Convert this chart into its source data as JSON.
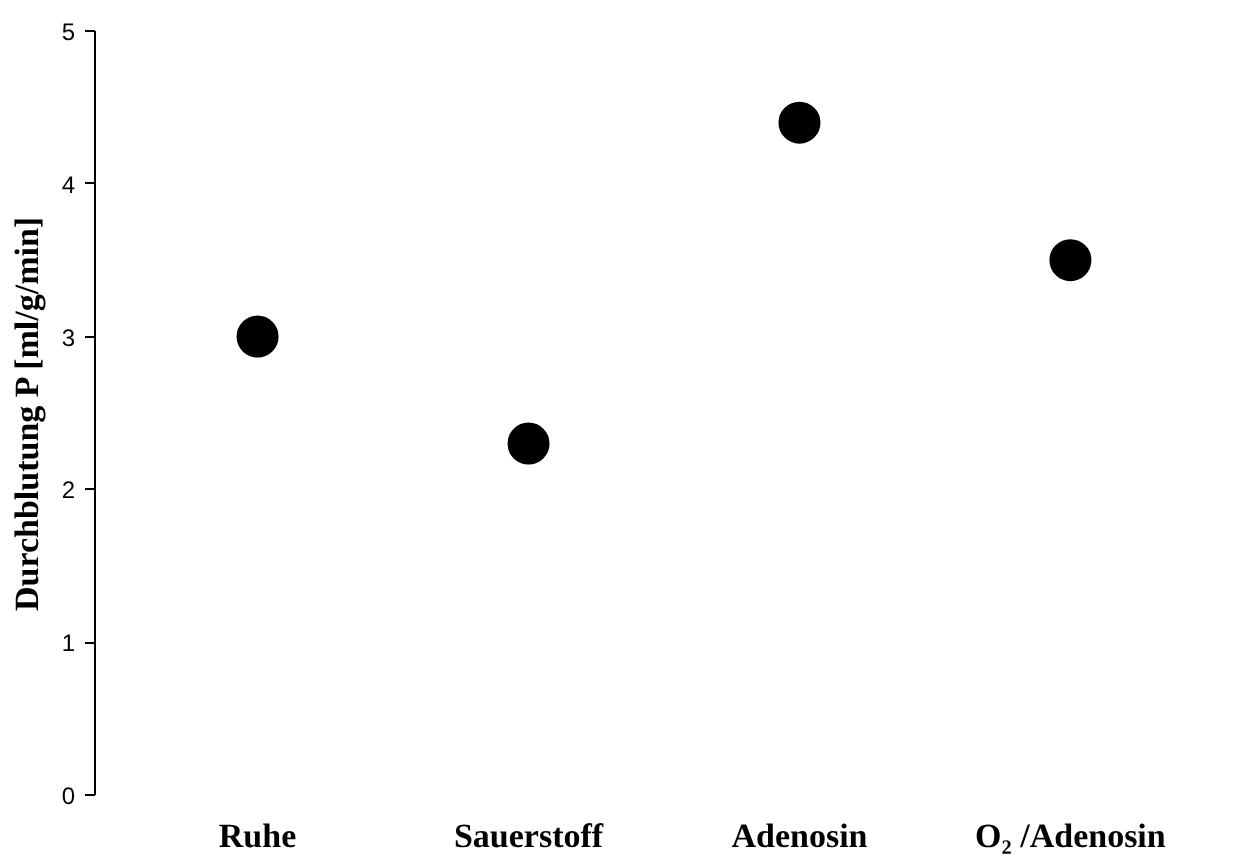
{
  "chart_data": {
    "type": "scatter",
    "ylabel": "Durchblutung P [ml/g/min]",
    "categories": [
      "Ruhe",
      "Sauerstoff",
      "Adenosin",
      "O₂ /Adenosin"
    ],
    "series": [
      {
        "color": "#000000",
        "values": [
          3.0,
          2.3,
          4.4,
          3.5
        ]
      }
    ],
    "ylim": [
      0,
      5
    ],
    "yticks": [
      0,
      1,
      2,
      3,
      4,
      5
    ],
    "marker": "circle"
  }
}
